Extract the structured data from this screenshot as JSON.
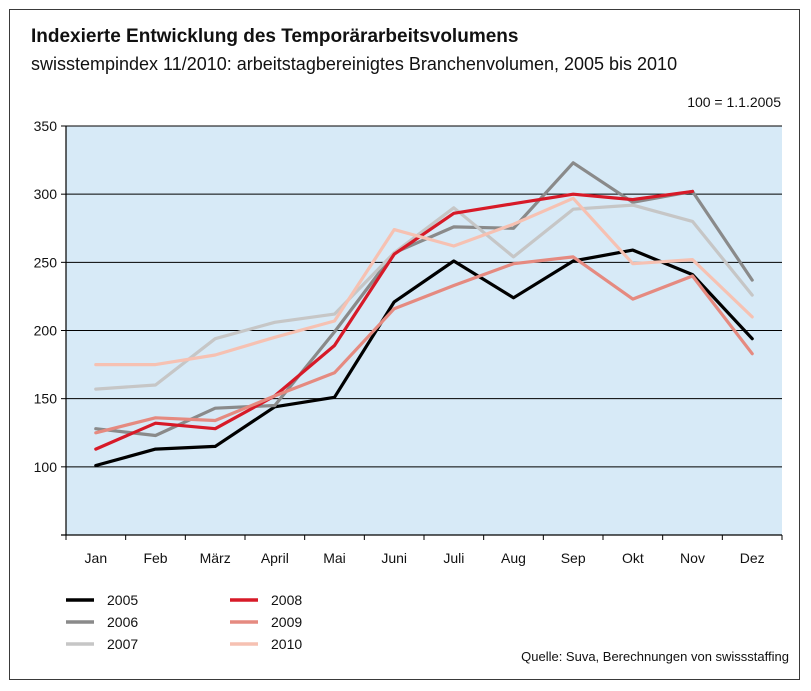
{
  "chart_data": {
    "type": "line",
    "title": "Indexierte Entwicklung des Temporärarbeitsvolumens",
    "subtitle": "swisstempindex 11/2010: arbeitstagbereinigtes Branchenvolumen, 2005 bis 2010",
    "note": "100 = 1.1.2005",
    "source": "Quelle: Suva, Berechnungen von swissstaffing",
    "categories": [
      "Jan",
      "Feb",
      "März",
      "April",
      "Mai",
      "Juni",
      "Juli",
      "Aug",
      "Sep",
      "Okt",
      "Nov",
      "Dez"
    ],
    "yticks": [
      100,
      150,
      200,
      250,
      300,
      350
    ],
    "ylim": [
      50,
      350
    ],
    "grid": true,
    "legend_position": "bottom-left",
    "plot_background": "#d7eaf7",
    "series": [
      {
        "name": "2005",
        "color": "#000000",
        "values": [
          101,
          113,
          115,
          144,
          151,
          221,
          251,
          224,
          251,
          259,
          241,
          194
        ]
      },
      {
        "name": "2006",
        "color": "#8a8a8a",
        "values": [
          128,
          123,
          143,
          145,
          199,
          257,
          276,
          275,
          323,
          294,
          302,
          237
        ]
      },
      {
        "name": "2007",
        "color": "#c6c6c6",
        "values": [
          157,
          160,
          194,
          206,
          212,
          257,
          290,
          254,
          289,
          292,
          280,
          226
        ]
      },
      {
        "name": "2008",
        "color": "#d71a28",
        "values": [
          113,
          132,
          128,
          152,
          189,
          256,
          286,
          293,
          300,
          296,
          302,
          null
        ]
      },
      {
        "name": "2009",
        "color": "#e58a80",
        "values": [
          125,
          136,
          134,
          152,
          169,
          216,
          233,
          249,
          254,
          223,
          240,
          183
        ]
      },
      {
        "name": "2010",
        "color": "#f6c1b2",
        "values": [
          175,
          175,
          182,
          195,
          207,
          274,
          262,
          278,
          297,
          249,
          252,
          210
        ]
      }
    ]
  }
}
